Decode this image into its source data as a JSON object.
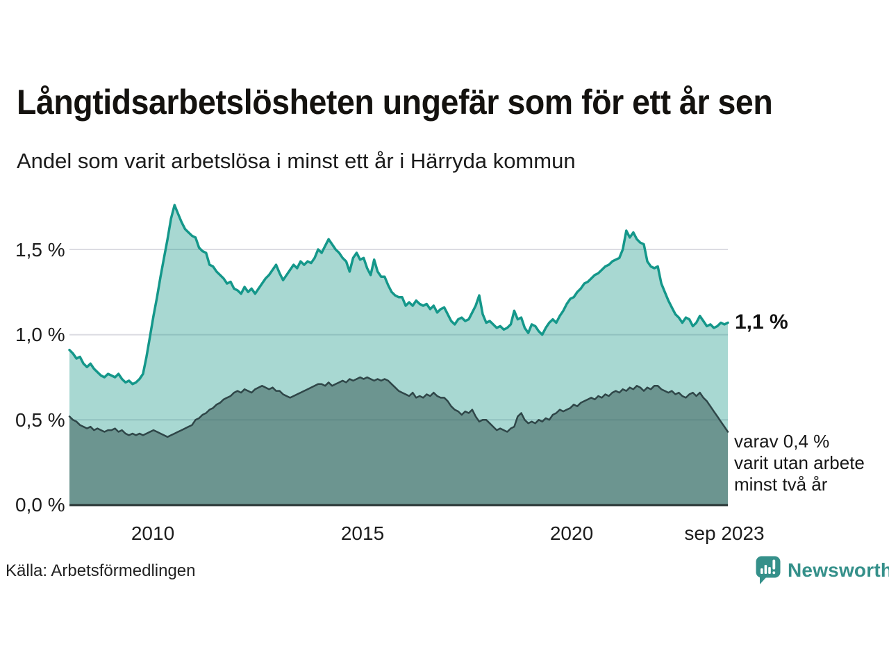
{
  "header": {
    "title": "Långtidsarbetslösheten ungefär som för ett år sen",
    "subtitle": "Andel som varit arbetslösa i minst ett år i Härryda kommun"
  },
  "axis": {
    "y_ticks": [
      "1,5 %",
      "1,0 %",
      "0,5 %",
      "0,0 %"
    ],
    "x_ticks": [
      "2010",
      "2015",
      "2020",
      "sep 2023"
    ]
  },
  "annotations": {
    "latest_value": "1,1 %",
    "secondary_line1": "varav 0,4 %",
    "secondary_line2": "varit utan arbete",
    "secondary_line3": "minst två år"
  },
  "footer": {
    "source": "Källa: Arbetsförmedlingen",
    "brand": "Newsworthy"
  },
  "colors": {
    "accent_teal": "#14978a",
    "light_fill": "rgba(18,150,132,0.37)",
    "dark_fill": "rgba(53,89,85,0.52)",
    "dark_line": "#2f4648",
    "gridline": "#dcdce2",
    "baseline": "#283434",
    "brand_teal": "#35908a"
  },
  "chart_data": {
    "type": "area",
    "title": "Långtidsarbetslösheten ungefär som för ett år sen",
    "subtitle": "Andel som varit arbetslösa i minst ett år i Härryda kommun",
    "unit": "%",
    "frequency": "monthly",
    "x_start": "2008-01",
    "x_end": "2023-09",
    "ylim": [
      0,
      1.9
    ],
    "y_gridlines": [
      0.5,
      1.0,
      1.5
    ],
    "x_tick_years": [
      2010,
      2015,
      2020
    ],
    "legend_position": "none",
    "grid": true,
    "series": [
      {
        "name": "Andel arbetslösa minst ett år",
        "latest_value": 1.1,
        "values": [
          0.91,
          0.89,
          0.86,
          0.87,
          0.83,
          0.81,
          0.83,
          0.8,
          0.78,
          0.76,
          0.75,
          0.77,
          0.76,
          0.75,
          0.77,
          0.74,
          0.72,
          0.73,
          0.71,
          0.72,
          0.74,
          0.77,
          0.87,
          0.99,
          1.11,
          1.22,
          1.34,
          1.45,
          1.56,
          1.68,
          1.76,
          1.71,
          1.66,
          1.62,
          1.6,
          1.58,
          1.57,
          1.51,
          1.49,
          1.48,
          1.41,
          1.4,
          1.37,
          1.35,
          1.33,
          1.3,
          1.31,
          1.27,
          1.26,
          1.24,
          1.28,
          1.25,
          1.27,
          1.24,
          1.27,
          1.3,
          1.33,
          1.35,
          1.38,
          1.41,
          1.36,
          1.32,
          1.35,
          1.38,
          1.41,
          1.39,
          1.43,
          1.41,
          1.43,
          1.42,
          1.45,
          1.5,
          1.48,
          1.52,
          1.56,
          1.53,
          1.5,
          1.48,
          1.45,
          1.43,
          1.37,
          1.45,
          1.48,
          1.44,
          1.45,
          1.39,
          1.35,
          1.44,
          1.37,
          1.34,
          1.34,
          1.29,
          1.25,
          1.23,
          1.22,
          1.22,
          1.17,
          1.19,
          1.17,
          1.2,
          1.18,
          1.17,
          1.18,
          1.15,
          1.17,
          1.13,
          1.15,
          1.16,
          1.12,
          1.08,
          1.06,
          1.09,
          1.1,
          1.08,
          1.09,
          1.13,
          1.17,
          1.23,
          1.12,
          1.07,
          1.08,
          1.06,
          1.04,
          1.05,
          1.03,
          1.04,
          1.06,
          1.14,
          1.09,
          1.1,
          1.04,
          1.01,
          1.06,
          1.05,
          1.02,
          1.0,
          1.04,
          1.07,
          1.09,
          1.07,
          1.11,
          1.14,
          1.18,
          1.21,
          1.22,
          1.25,
          1.27,
          1.3,
          1.31,
          1.33,
          1.35,
          1.36,
          1.38,
          1.4,
          1.41,
          1.43,
          1.44,
          1.45,
          1.5,
          1.61,
          1.57,
          1.6,
          1.56,
          1.54,
          1.53,
          1.43,
          1.4,
          1.39,
          1.4,
          1.3,
          1.25,
          1.2,
          1.16,
          1.12,
          1.1,
          1.07,
          1.1,
          1.09,
          1.05,
          1.07,
          1.11,
          1.08,
          1.05,
          1.06,
          1.04,
          1.05,
          1.07,
          1.06,
          1.07
        ]
      },
      {
        "name": "varav arbetslösa minst två år",
        "latest_value": 0.4,
        "values": [
          0.52,
          0.5,
          0.49,
          0.47,
          0.46,
          0.45,
          0.46,
          0.44,
          0.45,
          0.44,
          0.43,
          0.44,
          0.44,
          0.45,
          0.43,
          0.44,
          0.42,
          0.41,
          0.42,
          0.41,
          0.42,
          0.41,
          0.42,
          0.43,
          0.44,
          0.43,
          0.42,
          0.41,
          0.4,
          0.41,
          0.42,
          0.43,
          0.44,
          0.45,
          0.46,
          0.47,
          0.5,
          0.51,
          0.53,
          0.54,
          0.56,
          0.57,
          0.59,
          0.6,
          0.62,
          0.63,
          0.64,
          0.66,
          0.67,
          0.66,
          0.68,
          0.67,
          0.66,
          0.68,
          0.69,
          0.7,
          0.69,
          0.68,
          0.69,
          0.67,
          0.67,
          0.65,
          0.64,
          0.63,
          0.64,
          0.65,
          0.66,
          0.67,
          0.68,
          0.69,
          0.7,
          0.71,
          0.71,
          0.7,
          0.72,
          0.7,
          0.71,
          0.72,
          0.73,
          0.72,
          0.74,
          0.73,
          0.74,
          0.75,
          0.74,
          0.75,
          0.74,
          0.73,
          0.74,
          0.73,
          0.74,
          0.73,
          0.71,
          0.69,
          0.67,
          0.66,
          0.65,
          0.64,
          0.66,
          0.63,
          0.64,
          0.63,
          0.65,
          0.64,
          0.66,
          0.64,
          0.63,
          0.63,
          0.61,
          0.58,
          0.56,
          0.55,
          0.53,
          0.55,
          0.54,
          0.56,
          0.52,
          0.49,
          0.5,
          0.5,
          0.48,
          0.46,
          0.44,
          0.45,
          0.44,
          0.43,
          0.45,
          0.46,
          0.52,
          0.54,
          0.5,
          0.48,
          0.49,
          0.48,
          0.5,
          0.49,
          0.51,
          0.5,
          0.53,
          0.54,
          0.56,
          0.55,
          0.56,
          0.57,
          0.59,
          0.58,
          0.6,
          0.61,
          0.62,
          0.63,
          0.62,
          0.64,
          0.63,
          0.65,
          0.64,
          0.66,
          0.67,
          0.66,
          0.68,
          0.67,
          0.69,
          0.68,
          0.7,
          0.69,
          0.67,
          0.69,
          0.68,
          0.7,
          0.7,
          0.68,
          0.67,
          0.66,
          0.67,
          0.65,
          0.66,
          0.64,
          0.63,
          0.65,
          0.66,
          0.64,
          0.66,
          0.63,
          0.61,
          0.58,
          0.55,
          0.52,
          0.49,
          0.46,
          0.43
        ]
      }
    ]
  }
}
